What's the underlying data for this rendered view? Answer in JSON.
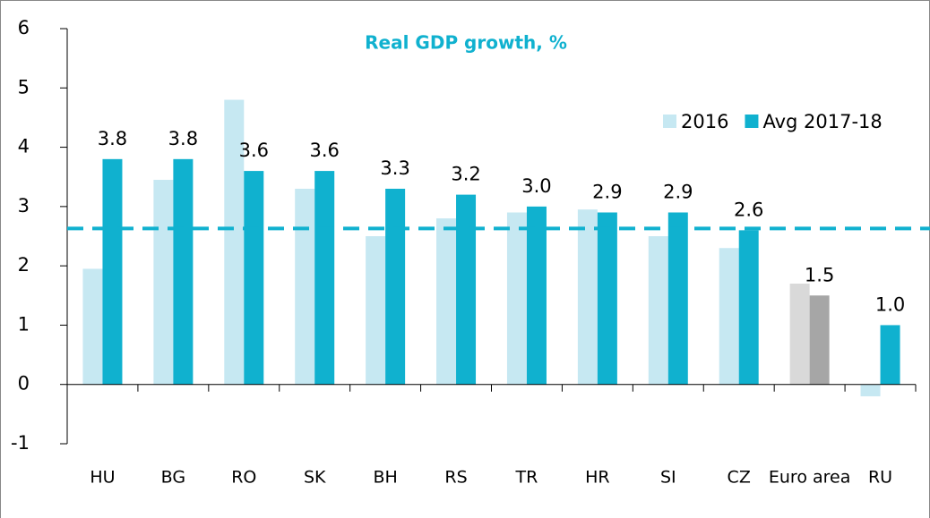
{
  "chart_data": {
    "type": "bar",
    "title": "Real GDP growth, %",
    "categories": [
      "HU",
      "BG",
      "RO",
      "SK",
      "BH",
      "RS",
      "TR",
      "HR",
      "SI",
      "CZ",
      "Euro area",
      "RU"
    ],
    "series": [
      {
        "name": "2016",
        "color": "#c6e8f2",
        "values": [
          1.95,
          3.45,
          4.8,
          3.3,
          2.5,
          2.8,
          2.9,
          2.95,
          2.5,
          2.3,
          1.7,
          -0.2
        ]
      },
      {
        "name": "Avg 2017-18",
        "color": "#10b1cf",
        "values": [
          3.8,
          3.8,
          3.6,
          3.6,
          3.3,
          3.2,
          3.0,
          2.9,
          2.9,
          2.6,
          1.5,
          1.0
        ],
        "value_labels": [
          "3.8",
          "3.8",
          "3.6",
          "3.6",
          "3.3",
          "3.2",
          "3.0",
          "2.9",
          "2.9",
          "2.6",
          "1.5",
          "1.0"
        ]
      }
    ],
    "highlight_category": "Euro area",
    "highlight_colors": [
      "#d9d9d9",
      "#a6a6a6"
    ],
    "reference_line": 2.63,
    "reference_color": "#10b1cf",
    "ylim": [
      -1,
      6
    ],
    "yticks": [
      -1,
      0,
      1,
      2,
      3,
      4,
      5,
      6
    ],
    "legend": "top-right"
  }
}
